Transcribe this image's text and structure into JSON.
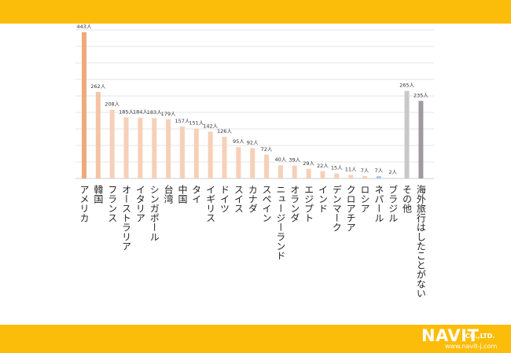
{
  "chart_data": {
    "type": "bar",
    "title": "",
    "xlabel": "",
    "ylabel": "",
    "ylim": [
      0,
      450
    ],
    "grid": true,
    "categories": [
      "アメリカ",
      "韓国",
      "フランス",
      "オーストラリア",
      "イタリア",
      "シンガポール",
      "台湾",
      "中国",
      "タイ",
      "イギリス",
      "ドイツ",
      "スイス",
      "カナダ",
      "スペイン",
      "ニュージーランド",
      "オランダ",
      "エジプト",
      "インド",
      "デンマーク",
      "クロアチア",
      "ロシア",
      "ネパール",
      "ブラジル",
      "その他",
      "海外旅行はしたことがない"
    ],
    "values": [
      443,
      262,
      208,
      185,
      184,
      183,
      179,
      157,
      151,
      142,
      126,
      95,
      92,
      72,
      40,
      39,
      29,
      22,
      15,
      11,
      7,
      7,
      2,
      265,
      235
    ],
    "value_labels": [
      "443人",
      "262人",
      "208人",
      "185人",
      "184人",
      "183人",
      "179人",
      "157人",
      "151人",
      "142人",
      "126人",
      "95人",
      "92人",
      "72人",
      "40人",
      "39人",
      "29人",
      "22人",
      "15人",
      "11人",
      "7人",
      "7人",
      "2人",
      "265人",
      "235人"
    ],
    "colors": [
      "#f0a97b",
      "#f5c4a6",
      "#f7d0b8",
      "#f7d0b8",
      "#f7d0b8",
      "#f7d0b8",
      "#f7d0b8",
      "#f7d0b8",
      "#f7d0b8",
      "#f7d0b8",
      "#f7d0b8",
      "#f7d0b8",
      "#f7d0b8",
      "#f7d0b8",
      "#f7d0b8",
      "#f7d0b8",
      "#f7d0b8",
      "#f7d0b8",
      "#f7d0b8",
      "#f7d0b8",
      "#f7d0b8",
      "#a9c8ec",
      "#f7d0b8",
      "#c8c8c8",
      "#a09aa0"
    ]
  },
  "branding": {
    "logo": "NAVIT",
    "logo_suffix": "CO.,LTD.",
    "url": "www.navit-j.com"
  }
}
